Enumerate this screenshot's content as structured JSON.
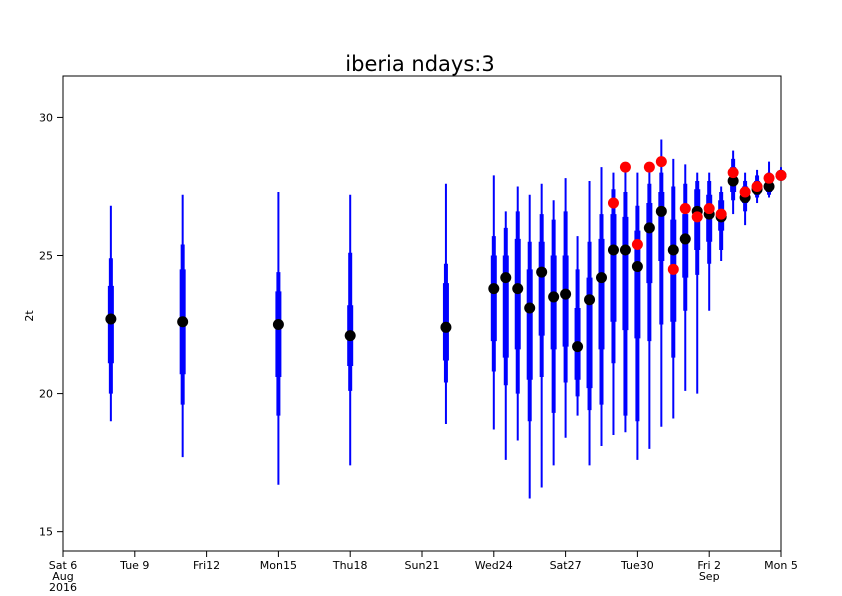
{
  "chart_data": {
    "type": "box",
    "title": "iberia ndays:3",
    "ylabel": "2t",
    "xlabel": "",
    "ylim": [
      14.3,
      31.5
    ],
    "yticks": [
      15,
      20,
      25,
      30
    ],
    "xlim": [
      6.0,
      36.0
    ],
    "xticks": [
      {
        "x": 6,
        "lines": [
          "Sat 6",
          "Aug",
          "2016"
        ],
        "color": "#000000"
      },
      {
        "x": 9,
        "lines": [
          "Tue 9"
        ],
        "color": "#000000"
      },
      {
        "x": 12,
        "lines": [
          "Fri12"
        ],
        "color": "#000000"
      },
      {
        "x": 15,
        "lines": [
          "Mon15"
        ],
        "color": "#000000"
      },
      {
        "x": 18,
        "lines": [
          "Thu18"
        ],
        "color": "#000000"
      },
      {
        "x": 21,
        "lines": [
          "Sun21"
        ],
        "color": "#ff0000"
      },
      {
        "x": 24,
        "lines": [
          "Wed24"
        ],
        "color": "#000000"
      },
      {
        "x": 27,
        "lines": [
          "Sat27"
        ],
        "color": "#000000"
      },
      {
        "x": 30,
        "lines": [
          "Tue30"
        ],
        "color": "#000000"
      },
      {
        "x": 33,
        "lines": [
          "Fri 2",
          "Sep"
        ],
        "color": "#000000"
      },
      {
        "x": 36,
        "lines": [
          "Mon 5"
        ],
        "color": "#000000"
      }
    ],
    "colors": {
      "box": "#0000ff",
      "median": "#000000",
      "observed": "#ff0000"
    },
    "series": [
      {
        "x": 8.0,
        "min": 19.0,
        "q10": 20.0,
        "q25": 21.1,
        "q75": 23.9,
        "q90": 24.9,
        "max": 26.8,
        "median": 22.7
      },
      {
        "x": 11.0,
        "min": 17.7,
        "q10": 19.6,
        "q25": 20.7,
        "q75": 24.5,
        "q90": 25.4,
        "max": 27.2,
        "median": 22.6
      },
      {
        "x": 15.0,
        "min": 16.7,
        "q10": 19.2,
        "q25": 20.6,
        "q75": 23.7,
        "q90": 24.4,
        "max": 27.3,
        "median": 22.5
      },
      {
        "x": 18.0,
        "min": 17.4,
        "q10": 20.1,
        "q25": 21.0,
        "q75": 23.2,
        "q90": 25.1,
        "max": 27.2,
        "median": 22.1
      },
      {
        "x": 22.0,
        "min": 18.9,
        "q10": 20.4,
        "q25": 21.2,
        "q75": 24.0,
        "q90": 24.7,
        "max": 27.6,
        "median": 22.4
      },
      {
        "x": 24.0,
        "min": 18.7,
        "q10": 20.8,
        "q25": 21.9,
        "q75": 25.0,
        "q90": 25.7,
        "max": 27.9,
        "median": 23.8
      },
      {
        "x": 24.5,
        "min": 17.6,
        "q10": 20.3,
        "q25": 21.3,
        "q75": 25.0,
        "q90": 26.0,
        "max": 26.6,
        "median": 24.2
      },
      {
        "x": 25.0,
        "min": 18.3,
        "q10": 20.0,
        "q25": 21.6,
        "q75": 25.6,
        "q90": 26.6,
        "max": 27.5,
        "median": 23.8
      },
      {
        "x": 25.5,
        "min": 16.2,
        "q10": 19.0,
        "q25": 20.5,
        "q75": 24.5,
        "q90": 25.5,
        "max": 27.2,
        "median": 23.1
      },
      {
        "x": 26.0,
        "min": 16.6,
        "q10": 20.6,
        "q25": 22.1,
        "q75": 25.5,
        "q90": 26.5,
        "max": 27.6,
        "median": 24.4
      },
      {
        "x": 26.5,
        "min": 17.4,
        "q10": 19.3,
        "q25": 21.6,
        "q75": 25.0,
        "q90": 26.3,
        "max": 27.0,
        "median": 23.5
      },
      {
        "x": 27.0,
        "min": 18.4,
        "q10": 20.4,
        "q25": 21.7,
        "q75": 25.0,
        "q90": 26.6,
        "max": 27.8,
        "median": 23.6
      },
      {
        "x": 27.5,
        "min": 19.2,
        "q10": 19.9,
        "q25": 20.5,
        "q75": 23.1,
        "q90": 24.5,
        "max": 25.7,
        "median": 21.7
      },
      {
        "x": 28.0,
        "min": 17.4,
        "q10": 19.4,
        "q25": 20.2,
        "q75": 24.2,
        "q90": 25.5,
        "max": 27.7,
        "median": 23.4
      },
      {
        "x": 28.5,
        "min": 18.1,
        "q10": 19.6,
        "q25": 21.6,
        "q75": 25.6,
        "q90": 26.5,
        "max": 28.2,
        "median": 24.2
      },
      {
        "x": 29.0,
        "min": 18.5,
        "q10": 21.1,
        "q25": 22.6,
        "q75": 26.5,
        "q90": 27.4,
        "max": 28.0,
        "median": 25.2
      },
      {
        "x": 29.5,
        "min": 18.6,
        "q10": 19.2,
        "q25": 22.3,
        "q75": 26.4,
        "q90": 27.3,
        "max": 28.2,
        "median": 25.2
      },
      {
        "x": 30.0,
        "min": 17.6,
        "q10": 19.0,
        "q25": 22.0,
        "q75": 25.9,
        "q90": 26.8,
        "max": 28.0,
        "median": 24.6
      },
      {
        "x": 30.5,
        "min": 18.0,
        "q10": 21.9,
        "q25": 24.0,
        "q75": 26.9,
        "q90": 27.6,
        "max": 28.2,
        "median": 26.0
      },
      {
        "x": 31.0,
        "min": 18.8,
        "q10": 22.5,
        "q25": 24.8,
        "q75": 27.3,
        "q90": 28.0,
        "max": 29.2,
        "median": 26.6
      },
      {
        "x": 31.5,
        "min": 19.1,
        "q10": 21.3,
        "q25": 22.6,
        "q75": 26.3,
        "q90": 27.5,
        "max": 28.5,
        "median": 25.2
      },
      {
        "x": 32.0,
        "min": 20.1,
        "q10": 23.0,
        "q25": 24.2,
        "q75": 26.5,
        "q90": 27.6,
        "max": 28.3,
        "median": 25.6
      },
      {
        "x": 32.5,
        "min": 20.0,
        "q10": 24.3,
        "q25": 25.2,
        "q75": 27.4,
        "q90": 27.7,
        "max": 28.0,
        "median": 26.6
      },
      {
        "x": 33.0,
        "min": 23.0,
        "q10": 24.7,
        "q25": 25.5,
        "q75": 27.2,
        "q90": 27.7,
        "max": 28.0,
        "median": 26.5
      },
      {
        "x": 33.5,
        "min": 24.8,
        "q10": 25.2,
        "q25": 25.9,
        "q75": 27.0,
        "q90": 27.3,
        "max": 27.5,
        "median": 26.4
      },
      {
        "x": 34.0,
        "min": 26.5,
        "q10": 27.0,
        "q25": 27.3,
        "q75": 28.2,
        "q90": 28.5,
        "max": 28.8,
        "median": 27.7
      },
      {
        "x": 34.5,
        "min": 26.1,
        "q10": 26.6,
        "q25": 26.9,
        "q75": 27.5,
        "q90": 27.7,
        "max": 28.0,
        "median": 27.1
      },
      {
        "x": 35.0,
        "min": 26.9,
        "q10": 27.1,
        "q25": 27.2,
        "q75": 27.7,
        "q90": 27.9,
        "max": 28.1,
        "median": 27.4
      },
      {
        "x": 35.5,
        "min": 27.1,
        "q10": 27.2,
        "q25": 27.3,
        "q75": 27.7,
        "q90": 28.0,
        "max": 28.4,
        "median": 27.5
      },
      {
        "x": 36.0,
        "min": 27.7,
        "q10": 27.8,
        "q25": 27.8,
        "q75": 28.0,
        "q90": 28.1,
        "max": 28.2,
        "median": 27.9
      }
    ],
    "observed": [
      {
        "x": 29.0,
        "y": 26.9
      },
      {
        "x": 29.5,
        "y": 28.2
      },
      {
        "x": 30.0,
        "y": 25.4
      },
      {
        "x": 30.5,
        "y": 28.2
      },
      {
        "x": 31.0,
        "y": 28.4
      },
      {
        "x": 31.5,
        "y": 24.5
      },
      {
        "x": 32.0,
        "y": 26.7
      },
      {
        "x": 32.5,
        "y": 26.4
      },
      {
        "x": 33.0,
        "y": 26.7
      },
      {
        "x": 33.5,
        "y": 26.5
      },
      {
        "x": 34.0,
        "y": 28.0
      },
      {
        "x": 34.5,
        "y": 27.3
      },
      {
        "x": 35.0,
        "y": 27.5
      },
      {
        "x": 35.5,
        "y": 27.8
      },
      {
        "x": 36.0,
        "y": 27.9
      }
    ]
  }
}
